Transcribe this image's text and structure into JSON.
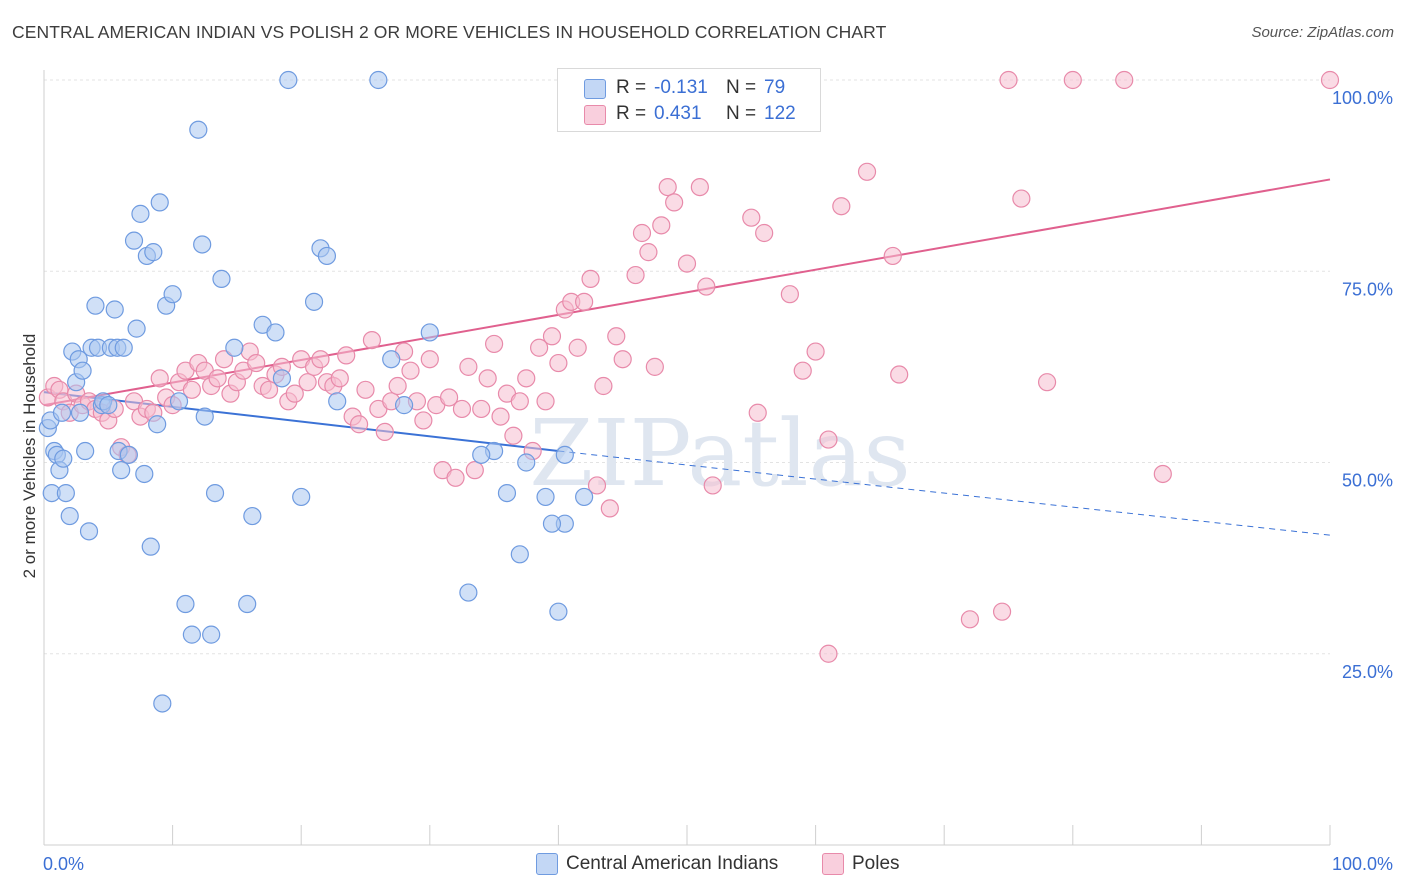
{
  "title": "CENTRAL AMERICAN INDIAN VS POLISH 2 OR MORE VEHICLES IN HOUSEHOLD CORRELATION CHART",
  "source": "Source: ZipAtlas.com",
  "watermark": "ZIPatlas",
  "colors": {
    "blue_fill": "#aac7f0",
    "blue_stroke": "#6f9be0",
    "blue_line": "#3b72d6",
    "pink_fill": "#f5bdd0",
    "pink_stroke": "#e88aaa",
    "pink_line": "#e0608e",
    "value_text": "#3b6fd4"
  },
  "legend": {
    "rows": [
      {
        "r_label": "R =",
        "r_value": "-0.131",
        "n_label": "N =",
        "n_value": "79"
      },
      {
        "r_label": "R =",
        "r_value": "0.431",
        "n_label": "N =",
        "n_value": "122"
      }
    ]
  },
  "bottom_legend": [
    "Central American Indians",
    "Poles"
  ],
  "chart_data": {
    "type": "scatter",
    "title": "CENTRAL AMERICAN INDIAN VS POLISH 2 OR MORE VEHICLES IN HOUSEHOLD CORRELATION CHART",
    "xlabel": "",
    "ylabel": "2 or more Vehicles in Household",
    "xlim": [
      0,
      100
    ],
    "ylim": [
      0,
      100
    ],
    "x_tick_labels": [
      "0.0%",
      "100.0%"
    ],
    "y_tick_labels": [
      "25.0%",
      "50.0%",
      "75.0%",
      "100.0%"
    ],
    "y_ticks": [
      25,
      50,
      75,
      100
    ],
    "grid": true,
    "legend_position": "top-center",
    "series": [
      {
        "name": "Central American Indians",
        "color": "#aac7f0",
        "R": -0.131,
        "N": 79,
        "trend": {
          "x": [
            0,
            40,
            100
          ],
          "y": [
            59.2,
            51.5,
            40.5
          ],
          "solid_until": 40
        },
        "points": [
          [
            0.3,
            54.5
          ],
          [
            0.5,
            55.5
          ],
          [
            0.6,
            46
          ],
          [
            0.8,
            51.5
          ],
          [
            1,
            51
          ],
          [
            1.2,
            49
          ],
          [
            1.4,
            56.5
          ],
          [
            1.5,
            50.5
          ],
          [
            1.7,
            46
          ],
          [
            2,
            43
          ],
          [
            2.2,
            64.5
          ],
          [
            2.5,
            60.5
          ],
          [
            2.7,
            63.5
          ],
          [
            2.8,
            56.5
          ],
          [
            3,
            62
          ],
          [
            3.2,
            51.5
          ],
          [
            3.5,
            41
          ],
          [
            3.7,
            65
          ],
          [
            4,
            70.5
          ],
          [
            4.2,
            65
          ],
          [
            4.5,
            57.5
          ],
          [
            4.6,
            58
          ],
          [
            5,
            57.5
          ],
          [
            5.2,
            65
          ],
          [
            5.5,
            70
          ],
          [
            5.7,
            65
          ],
          [
            5.8,
            51.5
          ],
          [
            6,
            49
          ],
          [
            6.2,
            65
          ],
          [
            6.6,
            51
          ],
          [
            7,
            79
          ],
          [
            7.2,
            67.5
          ],
          [
            7.5,
            82.5
          ],
          [
            7.8,
            48.5
          ],
          [
            8,
            77
          ],
          [
            8.3,
            39
          ],
          [
            8.5,
            77.5
          ],
          [
            8.8,
            55
          ],
          [
            9,
            84
          ],
          [
            9.2,
            18.5
          ],
          [
            9.5,
            70.5
          ],
          [
            10,
            72
          ],
          [
            10.5,
            58
          ],
          [
            11,
            31.5
          ],
          [
            11.5,
            27.5
          ],
          [
            12,
            93.5
          ],
          [
            12.3,
            78.5
          ],
          [
            12.5,
            56
          ],
          [
            13,
            27.5
          ],
          [
            13.3,
            46
          ],
          [
            13.8,
            74
          ],
          [
            14.8,
            65
          ],
          [
            15.8,
            31.5
          ],
          [
            16.2,
            43
          ],
          [
            17,
            68
          ],
          [
            18,
            67
          ],
          [
            18.5,
            61
          ],
          [
            19,
            100
          ],
          [
            20,
            45.5
          ],
          [
            21,
            71
          ],
          [
            21.5,
            78
          ],
          [
            22,
            77
          ],
          [
            22.8,
            58
          ],
          [
            26,
            100
          ],
          [
            27,
            63.5
          ],
          [
            28,
            57.5
          ],
          [
            30,
            67
          ],
          [
            33,
            33
          ],
          [
            35,
            51.5
          ],
          [
            36,
            46
          ],
          [
            37,
            38
          ],
          [
            37.5,
            50
          ],
          [
            39,
            45.5
          ],
          [
            40,
            30.5
          ],
          [
            40.5,
            42
          ],
          [
            42,
            45.5
          ],
          [
            40.5,
            51
          ],
          [
            34,
            51
          ],
          [
            39.5,
            42
          ]
        ]
      },
      {
        "name": "Poles",
        "color": "#f5bdd0",
        "R": 0.431,
        "N": 122,
        "trend": {
          "x": [
            0,
            100
          ],
          "y": [
            57.5,
            87
          ]
        },
        "points": [
          [
            0.3,
            58.5
          ],
          [
            0.8,
            60
          ],
          [
            1.2,
            59.5
          ],
          [
            1.5,
            58
          ],
          [
            2,
            56.5
          ],
          [
            2.5,
            59
          ],
          [
            3,
            57.5
          ],
          [
            3.5,
            58
          ],
          [
            4,
            57
          ],
          [
            4.5,
            56.5
          ],
          [
            5,
            55.5
          ],
          [
            5.5,
            57
          ],
          [
            6,
            52
          ],
          [
            6.5,
            51
          ],
          [
            7,
            58
          ],
          [
            7.5,
            56
          ],
          [
            8,
            57
          ],
          [
            8.5,
            56.5
          ],
          [
            9,
            61
          ],
          [
            9.5,
            58.5
          ],
          [
            10,
            57.5
          ],
          [
            10.5,
            60.5
          ],
          [
            11,
            62
          ],
          [
            11.5,
            59.5
          ],
          [
            12,
            63
          ],
          [
            12.5,
            62
          ],
          [
            13,
            60
          ],
          [
            13.5,
            61
          ],
          [
            14,
            63.5
          ],
          [
            14.5,
            59
          ],
          [
            15,
            60.5
          ],
          [
            15.5,
            62
          ],
          [
            16,
            64.5
          ],
          [
            16.5,
            63
          ],
          [
            17,
            60
          ],
          [
            17.5,
            59.5
          ],
          [
            18,
            61.5
          ],
          [
            18.5,
            62.5
          ],
          [
            19,
            58
          ],
          [
            19.5,
            59
          ],
          [
            20,
            63.5
          ],
          [
            20.5,
            60.5
          ],
          [
            21,
            62.5
          ],
          [
            21.5,
            63.5
          ],
          [
            22,
            60.5
          ],
          [
            22.5,
            60
          ],
          [
            23,
            61
          ],
          [
            23.5,
            64
          ],
          [
            24,
            56
          ],
          [
            24.5,
            55
          ],
          [
            25,
            59.5
          ],
          [
            25.5,
            66
          ],
          [
            26,
            57
          ],
          [
            26.5,
            54
          ],
          [
            27,
            58
          ],
          [
            27.5,
            60
          ],
          [
            28,
            64.5
          ],
          [
            28.5,
            62
          ],
          [
            29,
            58
          ],
          [
            29.5,
            55.5
          ],
          [
            30,
            63.5
          ],
          [
            30.5,
            57.5
          ],
          [
            31,
            49
          ],
          [
            31.5,
            58.5
          ],
          [
            32,
            48
          ],
          [
            32.5,
            57
          ],
          [
            33,
            62.5
          ],
          [
            33.5,
            49
          ],
          [
            34,
            57
          ],
          [
            34.5,
            61
          ],
          [
            35,
            65.5
          ],
          [
            35.5,
            56
          ],
          [
            36,
            59
          ],
          [
            36.5,
            53.5
          ],
          [
            37,
            58
          ],
          [
            37.5,
            61
          ],
          [
            38,
            51.5
          ],
          [
            38.5,
            65
          ],
          [
            39,
            58
          ],
          [
            39.5,
            66.5
          ],
          [
            40,
            63
          ],
          [
            40.5,
            70
          ],
          [
            41,
            71
          ],
          [
            41.5,
            65
          ],
          [
            42,
            71
          ],
          [
            42.5,
            74
          ],
          [
            43,
            47
          ],
          [
            43.5,
            60
          ],
          [
            44,
            44
          ],
          [
            44.5,
            66.5
          ],
          [
            45,
            63.5
          ],
          [
            46,
            74.5
          ],
          [
            46.5,
            80
          ],
          [
            47,
            77.5
          ],
          [
            47.5,
            62.5
          ],
          [
            48,
            81
          ],
          [
            48.5,
            86
          ],
          [
            49,
            84
          ],
          [
            50,
            76
          ],
          [
            50.5,
            95
          ],
          [
            51,
            86
          ],
          [
            51.5,
            73
          ],
          [
            52,
            47
          ],
          [
            53,
            100
          ],
          [
            54,
            96
          ],
          [
            55,
            82
          ],
          [
            56,
            80
          ],
          [
            58,
            72
          ],
          [
            59,
            62
          ],
          [
            60,
            64.5
          ],
          [
            61,
            25
          ],
          [
            62,
            83.5
          ],
          [
            64,
            88
          ],
          [
            66,
            77
          ],
          [
            66.5,
            61.5
          ],
          [
            72,
            29.5
          ],
          [
            74.5,
            30.5
          ],
          [
            75,
            100
          ],
          [
            76,
            84.5
          ],
          [
            78,
            60.5
          ],
          [
            80,
            100
          ],
          [
            84,
            100
          ],
          [
            87,
            48.5
          ],
          [
            100,
            100
          ],
          [
            55.5,
            56.5
          ],
          [
            61,
            53
          ]
        ]
      }
    ]
  }
}
